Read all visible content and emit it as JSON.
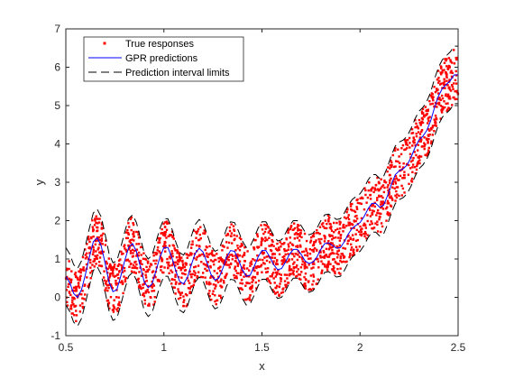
{
  "chart_data": {
    "type": "scatter",
    "title": "",
    "xlabel": "x",
    "ylabel": "y",
    "xlim": [
      0.5,
      2.5
    ],
    "ylim": [
      -1,
      7
    ],
    "xticks": [
      0.5,
      1,
      1.5,
      2,
      2.5
    ],
    "xtick_labels": [
      "0.5",
      "1",
      "1.5",
      "2",
      "2.5"
    ],
    "yticks": [
      -1,
      0,
      1,
      2,
      3,
      4,
      5,
      6,
      7
    ],
    "ytick_labels": [
      "-1",
      "0",
      "1",
      "2",
      "3",
      "4",
      "5",
      "6",
      "7"
    ],
    "grid": false,
    "legend_position": "top-left",
    "noise_band_halfwidth": 0.75,
    "series": [
      {
        "name": "True responses",
        "kind": "scatter",
        "marker": "dot",
        "color": "#ff0000",
        "x_range": [
          0.5,
          2.5
        ],
        "point_count": 2000,
        "note_center_follows": "GPR predictions"
      },
      {
        "name": "GPR predictions",
        "kind": "line",
        "color": "#0000ff",
        "x": [
          0.5,
          0.52,
          0.54,
          0.56,
          0.58,
          0.6,
          0.62,
          0.64,
          0.66,
          0.68,
          0.7,
          0.72,
          0.74,
          0.76,
          0.78,
          0.8,
          0.82,
          0.84,
          0.86,
          0.88,
          0.9,
          0.92,
          0.94,
          0.96,
          0.98,
          1.0,
          1.02,
          1.04,
          1.06,
          1.08,
          1.1,
          1.12,
          1.14,
          1.16,
          1.18,
          1.2,
          1.22,
          1.24,
          1.26,
          1.28,
          1.3,
          1.32,
          1.34,
          1.36,
          1.38,
          1.4,
          1.42,
          1.44,
          1.46,
          1.48,
          1.5,
          1.52,
          1.54,
          1.56,
          1.58,
          1.6,
          1.62,
          1.64,
          1.66,
          1.68,
          1.7,
          1.72,
          1.74,
          1.76,
          1.78,
          1.8,
          1.82,
          1.84,
          1.86,
          1.88,
          1.9,
          1.92,
          1.94,
          1.96,
          1.98,
          2.0,
          2.02,
          2.04,
          2.06,
          2.08,
          2.1,
          2.12,
          2.14,
          2.16,
          2.18,
          2.2,
          2.22,
          2.24,
          2.26,
          2.28,
          2.3,
          2.32,
          2.34,
          2.36,
          2.38,
          2.4,
          2.42,
          2.44,
          2.46,
          2.48,
          2.5
        ],
        "y": [
          0.55,
          0.38,
          0.1,
          0.0,
          0.2,
          0.6,
          1.05,
          1.45,
          1.55,
          1.35,
          0.9,
          0.4,
          0.15,
          0.2,
          0.55,
          0.95,
          1.3,
          1.4,
          1.2,
          0.8,
          0.4,
          0.25,
          0.35,
          0.7,
          1.05,
          1.3,
          1.3,
          1.05,
          0.7,
          0.42,
          0.35,
          0.52,
          0.85,
          1.15,
          1.28,
          1.18,
          0.9,
          0.6,
          0.45,
          0.5,
          0.75,
          1.05,
          1.22,
          1.2,
          0.98,
          0.72,
          0.55,
          0.58,
          0.8,
          1.05,
          1.22,
          1.22,
          1.05,
          0.85,
          0.72,
          0.75,
          0.92,
          1.12,
          1.25,
          1.25,
          1.12,
          0.95,
          0.88,
          0.92,
          1.05,
          1.25,
          1.4,
          1.42,
          1.35,
          1.28,
          1.3,
          1.45,
          1.65,
          1.8,
          1.88,
          1.95,
          2.1,
          2.3,
          2.45,
          2.45,
          2.35,
          2.4,
          2.65,
          2.95,
          3.2,
          3.3,
          3.35,
          3.45,
          3.65,
          3.9,
          4.1,
          4.2,
          4.35,
          4.6,
          4.95,
          5.25,
          5.45,
          5.55,
          5.65,
          5.8,
          5.8
        ]
      },
      {
        "name": "Prediction interval limits",
        "kind": "line",
        "style": "dashed",
        "color": "#000000",
        "offset_from_prediction": [
          -0.75,
          0.75
        ]
      }
    ]
  }
}
